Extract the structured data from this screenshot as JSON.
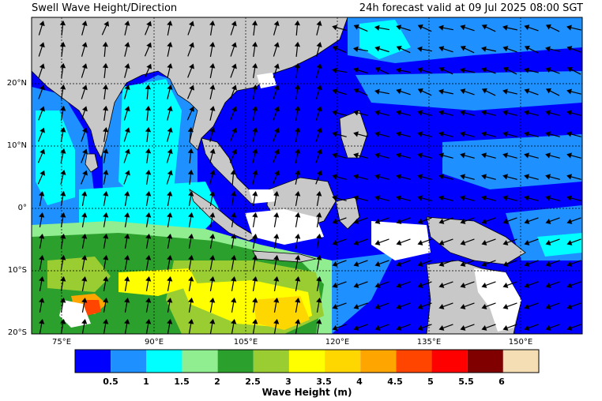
{
  "header": {
    "title": "Swell Wave Height/Direction",
    "valid": "24h forecast valid at 09 Jul 2025 08:00 SGT"
  },
  "axes": {
    "lat_labels": [
      "20°N",
      "10°N",
      "0°",
      "10°S",
      "20°S"
    ],
    "lon_labels": [
      "75°E",
      "90°E",
      "105°E",
      "120°E",
      "135°E",
      "150°E"
    ]
  },
  "colorbar": {
    "title": "Wave Height (m)",
    "ticks": [
      "0.5",
      "1",
      "1.5",
      "2",
      "2.5",
      "3",
      "3.5",
      "4",
      "4.5",
      "5",
      "5.5",
      "6"
    ],
    "colors": [
      "#0000ff",
      "#1e90ff",
      "#00ffff",
      "#90ee90",
      "#2ca02c",
      "#9acd32",
      "#ffff00",
      "#ffd700",
      "#ffa500",
      "#ff4500",
      "#ff0000",
      "#800000",
      "#f5deb3"
    ]
  },
  "map_colors": {
    "land": "#c8c8c8",
    "no_data": "#ffffff"
  }
}
